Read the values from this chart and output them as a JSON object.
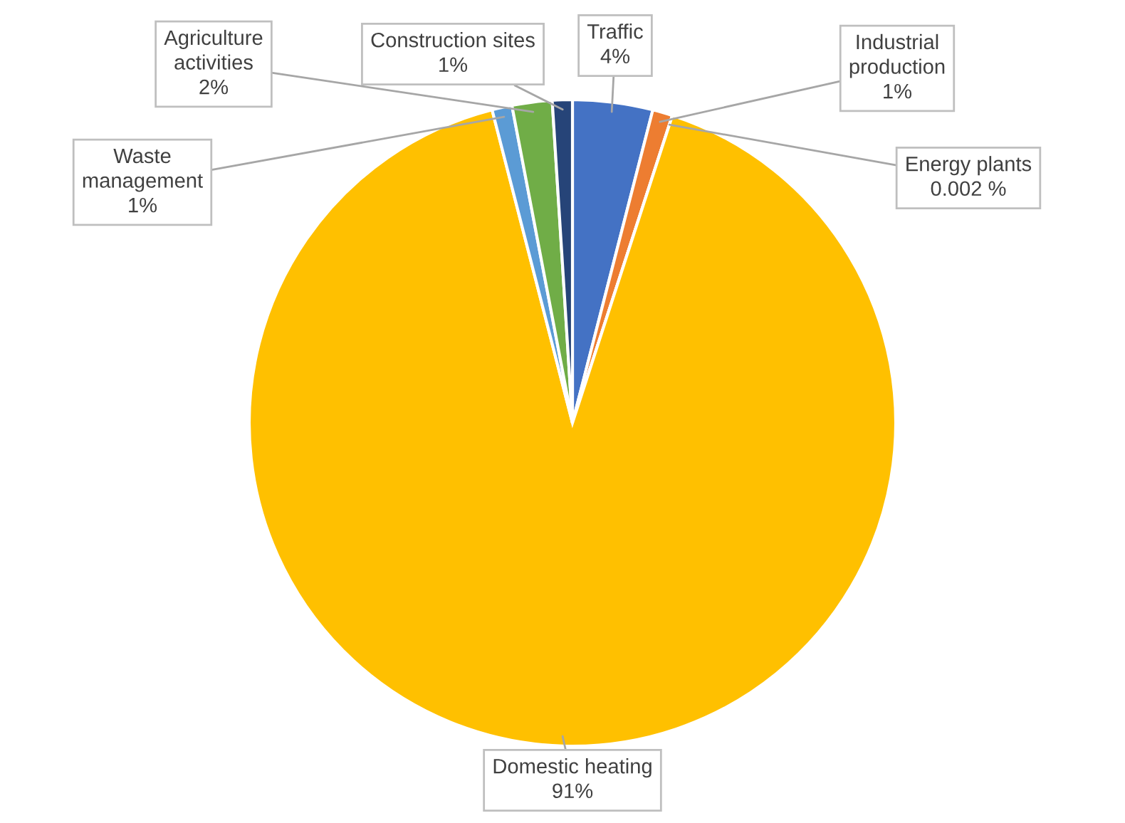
{
  "chart_data": {
    "type": "pie",
    "categories": [
      "Traffic",
      "Industrial production",
      "Energy plants",
      "Domestic heating",
      "Waste management",
      "Agriculture activities",
      "Construction sites"
    ],
    "values": [
      4,
      1,
      0.002,
      91,
      1,
      2,
      1
    ],
    "value_labels": [
      "4%",
      "1%",
      "0.002 %",
      "91%",
      "1%",
      "2%",
      "1%"
    ],
    "colors": [
      "#4472c4",
      "#ed7d31",
      "#a5a5a5",
      "#ffc000",
      "#5b9bd5",
      "#70ad47",
      "#264478"
    ]
  }
}
